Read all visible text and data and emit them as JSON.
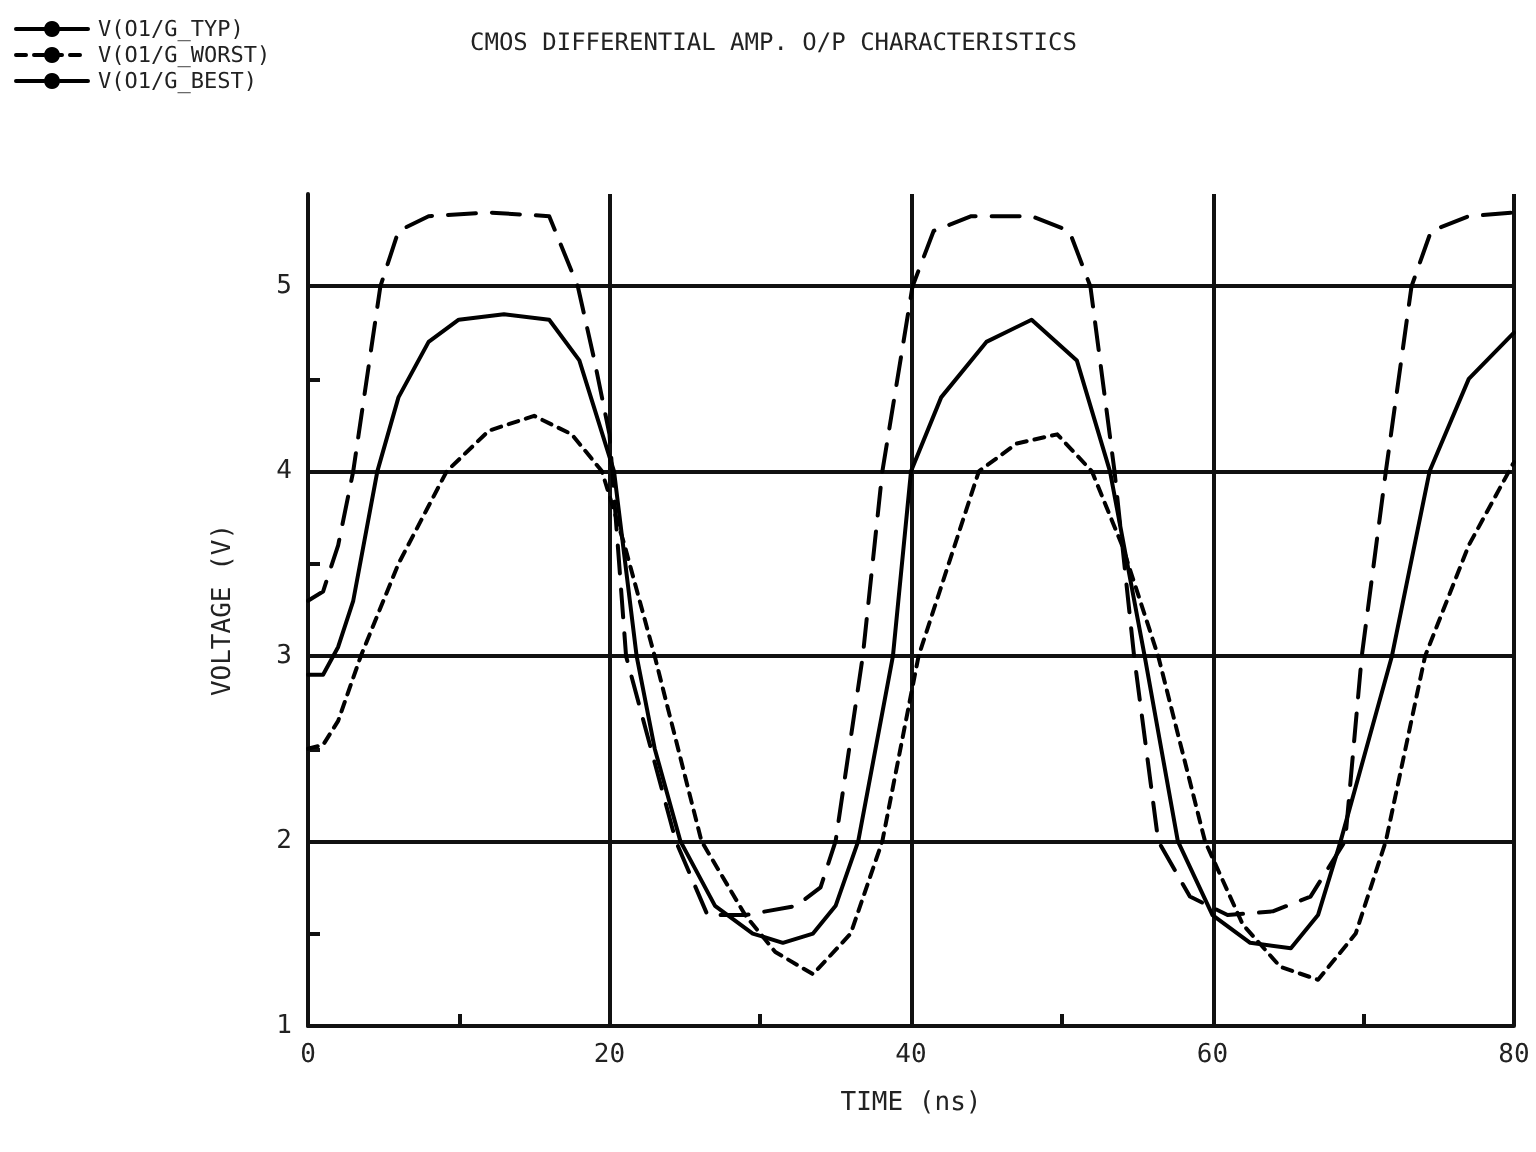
{
  "chart_data": {
    "type": "line",
    "title": "CMOS DIFFERENTIAL AMP. O/P CHARACTERISTICS",
    "xlabel": "TIME (ns)",
    "ylabel": "VOLTAGE (V)",
    "xlim": [
      0,
      80
    ],
    "xticks": [
      0,
      {
        "value": 10,
        "label": null
      },
      20,
      {
        "value": 30,
        "label": null
      },
      40,
      {
        "value": 50,
        "label": null
      },
      60,
      {
        "value": 70,
        "label": null
      },
      80
    ],
    "ylim": [
      1,
      5.5
    ],
    "yticks": [
      1,
      {
        "value": 1.5,
        "label": null
      },
      2,
      {
        "value": 2.5,
        "label": null
      },
      3,
      {
        "value": 3.5,
        "label": null
      },
      4,
      {
        "value": 4.5,
        "label": null
      },
      5
    ],
    "grid": true,
    "legend": "top left",
    "marker": "none",
    "series": [
      {
        "name": "V(O1/G_TYP)",
        "color": "#000000",
        "line_style": "solid",
        "x": [
          0,
          1,
          2,
          3,
          4.6,
          6,
          8,
          10,
          13,
          16,
          18,
          20.3,
          21.8,
          23,
          24.7,
          27,
          29.5,
          31.5,
          33.5,
          35,
          36.5,
          38.8,
          40,
          42,
          45,
          48,
          51,
          53.2,
          55.5,
          57.7,
          60,
          62.5,
          65.2,
          67,
          68.5,
          71.9,
          74.4,
          77,
          80
        ],
        "values": [
          2.9,
          2.9,
          3.05,
          3.3,
          4.0,
          4.4,
          4.7,
          4.82,
          4.85,
          4.82,
          4.6,
          4.0,
          3.0,
          2.5,
          2.0,
          1.65,
          1.5,
          1.45,
          1.5,
          1.65,
          2.0,
          3.0,
          4.0,
          4.4,
          4.7,
          4.82,
          4.6,
          4.0,
          3.0,
          2.0,
          1.6,
          1.45,
          1.42,
          1.6,
          2.0,
          3.0,
          4.0,
          4.5,
          4.75
        ]
      },
      {
        "name": "V(O1/G_WORST)",
        "color": "#000000",
        "line_style": "dotted",
        "x": [
          0,
          1,
          2,
          3.5,
          6,
          9.2,
          12,
          15,
          17.5,
          19.5,
          21,
          23,
          26.1,
          29,
          31,
          33.5,
          36,
          38.1,
          40.5,
          44.5,
          47,
          49.7,
          52,
          54,
          56.4,
          59.5,
          62,
          64.5,
          67,
          69.5,
          71.5,
          74.1,
          77,
          80
        ],
        "values": [
          2.5,
          2.52,
          2.65,
          3.0,
          3.5,
          4.0,
          4.22,
          4.3,
          4.2,
          4.0,
          3.6,
          3.0,
          2.0,
          1.6,
          1.4,
          1.28,
          1.5,
          2.0,
          3.0,
          4.0,
          4.15,
          4.2,
          4.0,
          3.6,
          3.0,
          2.0,
          1.55,
          1.32,
          1.25,
          1.5,
          2.0,
          3.0,
          3.6,
          4.05
        ]
      },
      {
        "name": "V(O1/G_BEST)",
        "color": "#000000",
        "line_style": "dashed",
        "x": [
          0,
          1,
          2,
          3,
          4.8,
          6,
          8,
          12,
          16,
          17.9,
          19,
          20,
          21.1,
          24.4,
          26.5,
          29,
          32.4,
          34,
          35,
          36.8,
          38.1,
          40.1,
          41.5,
          44,
          48,
          50.5,
          51.9,
          53.5,
          54.8,
          56.4,
          58.5,
          61,
          64,
          66.5,
          68.8,
          69.9,
          71.5,
          73.2,
          74.5,
          77,
          80
        ],
        "values": [
          3.3,
          3.35,
          3.6,
          4.0,
          5.0,
          5.3,
          5.38,
          5.4,
          5.38,
          5.0,
          4.6,
          4.2,
          3.0,
          2.0,
          1.6,
          1.6,
          1.65,
          1.75,
          2.0,
          3.0,
          4.0,
          5.0,
          5.3,
          5.38,
          5.38,
          5.3,
          5.0,
          4.0,
          3.0,
          2.0,
          1.7,
          1.6,
          1.62,
          1.7,
          2.0,
          3.0,
          4.0,
          5.0,
          5.3,
          5.38,
          5.4
        ]
      }
    ]
  }
}
